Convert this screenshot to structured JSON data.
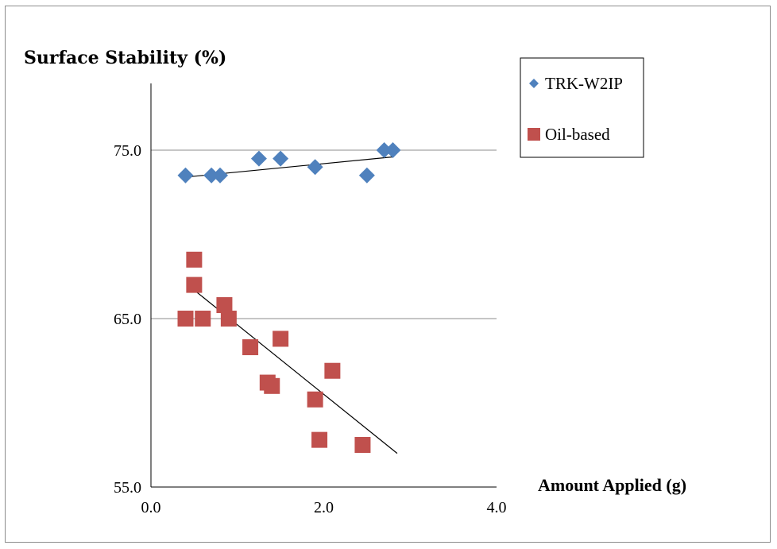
{
  "chart_data": {
    "type": "scatter",
    "title": "Surface  Stability  (%)",
    "xlabel": "Amount Applied (g)",
    "ylabel": "",
    "xlim": [
      0,
      4
    ],
    "ylim": [
      55,
      80
    ],
    "x_ticks": [
      "0.0",
      "2.0",
      "4.0"
    ],
    "y_ticks": [
      "55.0",
      "65.0",
      "75.0"
    ],
    "grid": "horizontal",
    "legend": "right",
    "series": [
      {
        "name": "TRK-W2IP",
        "marker": "diamond",
        "color": "#4F81BD",
        "points": [
          [
            0.4,
            73.5
          ],
          [
            0.7,
            73.5
          ],
          [
            0.8,
            73.5
          ],
          [
            1.25,
            74.5
          ],
          [
            1.5,
            74.5
          ],
          [
            1.9,
            74.0
          ],
          [
            2.5,
            73.5
          ],
          [
            2.7,
            75.0
          ],
          [
            2.8,
            75.0
          ]
        ],
        "trendline": [
          [
            0.4,
            73.4
          ],
          [
            2.8,
            74.6
          ]
        ]
      },
      {
        "name": "Oil-based",
        "marker": "square",
        "color": "#C0504D",
        "points": [
          [
            0.4,
            65.0
          ],
          [
            0.5,
            68.5
          ],
          [
            0.5,
            67.0
          ],
          [
            0.6,
            65.0
          ],
          [
            0.85,
            65.8
          ],
          [
            0.9,
            65.0
          ],
          [
            1.15,
            63.3
          ],
          [
            1.35,
            61.2
          ],
          [
            1.4,
            61.0
          ],
          [
            1.5,
            63.8
          ],
          [
            1.9,
            60.2
          ],
          [
            1.95,
            57.8
          ],
          [
            2.1,
            61.9
          ],
          [
            2.45,
            57.5
          ]
        ],
        "trendline": [
          [
            0.45,
            66.9
          ],
          [
            2.85,
            57.0
          ]
        ]
      }
    ]
  }
}
